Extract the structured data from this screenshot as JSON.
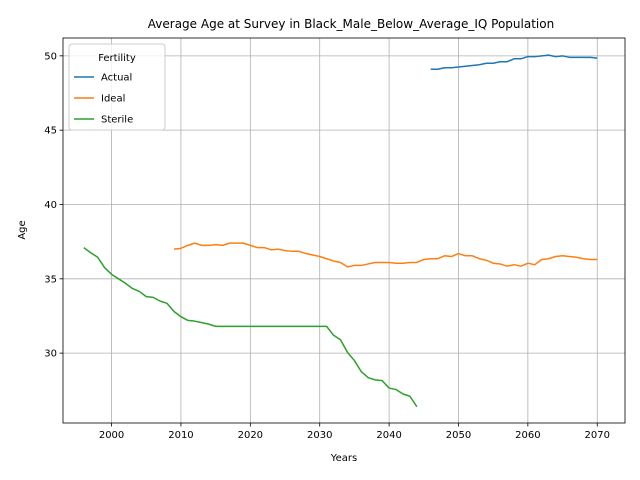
{
  "chart_data": {
    "type": "line",
    "title": "Average Age at Survey in Black_Male_Below_Average_IQ Population",
    "xlabel": "Years",
    "ylabel": "Age",
    "xlim": [
      1993,
      2074
    ],
    "ylim": [
      25.3,
      51.2
    ],
    "xticks": [
      2000,
      2010,
      2020,
      2030,
      2040,
      2050,
      2060,
      2070
    ],
    "yticks": [
      30,
      35,
      40,
      45,
      50
    ],
    "grid": true,
    "legend": {
      "title": "Fertility",
      "position": "upper left"
    },
    "series": [
      {
        "name": "Actual",
        "color": "#1f77b4",
        "x": [
          2046,
          2047,
          2048,
          2049,
          2050,
          2051,
          2052,
          2053,
          2054,
          2055,
          2056,
          2057,
          2058,
          2059,
          2060,
          2061,
          2062,
          2063,
          2064,
          2065,
          2066,
          2067,
          2068,
          2069,
          2070
        ],
        "y": [
          49.1,
          49.1,
          49.2,
          49.2,
          49.25,
          49.3,
          49.35,
          49.4,
          49.5,
          49.5,
          49.6,
          49.6,
          49.8,
          49.8,
          49.95,
          49.95,
          50.0,
          50.05,
          49.95,
          50.0,
          49.9,
          49.9,
          49.9,
          49.9,
          49.85
        ]
      },
      {
        "name": "Ideal",
        "color": "#ff7f0e",
        "x": [
          2009,
          2010,
          2011,
          2012,
          2013,
          2014,
          2015,
          2016,
          2017,
          2018,
          2019,
          2020,
          2021,
          2022,
          2023,
          2024,
          2025,
          2026,
          2027,
          2028,
          2029,
          2030,
          2031,
          2032,
          2033,
          2034,
          2035,
          2036,
          2037,
          2038,
          2039,
          2040,
          2041,
          2042,
          2043,
          2044,
          2045,
          2046,
          2047,
          2048,
          2049,
          2050,
          2051,
          2052,
          2053,
          2054,
          2055,
          2056,
          2057,
          2058,
          2059,
          2060,
          2061,
          2062,
          2063,
          2064,
          2065,
          2066,
          2067,
          2068,
          2069,
          2070
        ],
        "y": [
          37.0,
          37.05,
          37.25,
          37.4,
          37.25,
          37.25,
          37.3,
          37.25,
          37.4,
          37.4,
          37.4,
          37.25,
          37.1,
          37.1,
          36.95,
          37.0,
          36.9,
          36.85,
          36.85,
          36.7,
          36.6,
          36.5,
          36.35,
          36.2,
          36.1,
          35.8,
          35.9,
          35.9,
          36.0,
          36.1,
          36.1,
          36.1,
          36.05,
          36.05,
          36.1,
          36.1,
          36.3,
          36.35,
          36.35,
          36.55,
          36.5,
          36.7,
          36.55,
          36.55,
          36.35,
          36.25,
          36.05,
          36.0,
          35.85,
          35.95,
          35.85,
          36.05,
          35.95,
          36.3,
          36.35,
          36.5,
          36.55,
          36.5,
          36.45,
          36.35,
          36.3,
          36.3
        ]
      },
      {
        "name": "Sterile",
        "color": "#2ca02c",
        "x": [
          1996,
          1997,
          1998,
          1999,
          2000,
          2001,
          2002,
          2003,
          2004,
          2005,
          2006,
          2007,
          2008,
          2009,
          2010,
          2011,
          2012,
          2013,
          2014,
          2015,
          2016,
          2017,
          2018,
          2019,
          2020,
          2021,
          2022,
          2023,
          2024,
          2025,
          2026,
          2027,
          2028,
          2029,
          2030,
          2031,
          2032,
          2033,
          2034,
          2035,
          2036,
          2037,
          2038,
          2039,
          2040,
          2041,
          2042,
          2043,
          2044
        ],
        "y": [
          37.1,
          36.75,
          36.45,
          35.75,
          35.3,
          35.0,
          34.7,
          34.35,
          34.15,
          33.8,
          33.75,
          33.5,
          33.35,
          32.8,
          32.45,
          32.2,
          32.15,
          32.05,
          31.95,
          31.8,
          31.8,
          31.8,
          31.8,
          31.8,
          31.8,
          31.8,
          31.8,
          31.8,
          31.8,
          31.8,
          31.8,
          31.8,
          31.8,
          31.8,
          31.8,
          31.8,
          31.2,
          30.9,
          30.05,
          29.5,
          28.75,
          28.35,
          28.2,
          28.15,
          27.65,
          27.55,
          27.25,
          27.1,
          26.4
        ]
      }
    ]
  }
}
